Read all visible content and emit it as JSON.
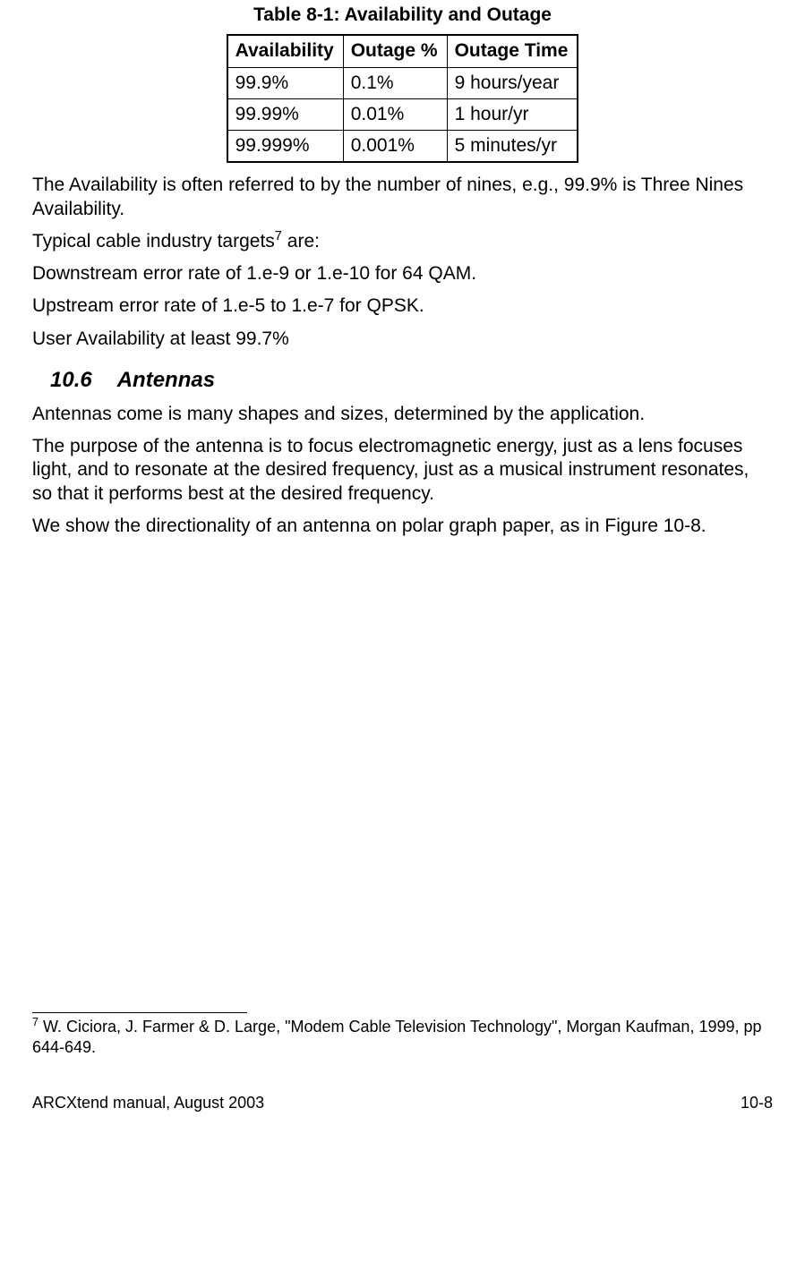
{
  "table": {
    "caption": "Table 8-1: Availability and Outage",
    "columns": [
      "Availability",
      "Outage %",
      "Outage Time"
    ],
    "rows": [
      [
        "99.9%",
        "0.1%",
        "9 hours/year"
      ],
      [
        "99.99%",
        "0.01%",
        "1 hour/yr"
      ],
      [
        "99.999%",
        "0.001%",
        "5 minutes/yr"
      ]
    ]
  },
  "paragraphs": {
    "p1": "The Availability is often referred to by the number of nines, e.g., 99.9% is Three Nines Availability.",
    "p2a": "Typical cable industry targets",
    "p2sup": "7",
    "p2b": " are:",
    "p3": "Downstream error rate of 1.e-9 or 1.e-10 for 64 QAM.",
    "p4": "Upstream error rate of 1.e-5 to 1.e-7 for QPSK.",
    "p5": "User Availability at least 99.7%"
  },
  "section": {
    "number": "10.6",
    "title": "Antennas"
  },
  "antennas": {
    "p1": "Antennas come is many shapes and sizes, determined by the application.",
    "p2": "The purpose of the antenna is to focus electromagnetic energy, just as a lens focuses light, and to resonate at the desired frequency, just as a musical instrument resonates, so that it performs best at the desired frequency.",
    "p3": "We show the directionality of an antenna on polar graph paper, as in Figure 10-8."
  },
  "footnote": {
    "num": "7",
    "text": " W. Ciciora, J. Farmer & D. Large, \"Modem Cable Television Technology\", Morgan Kaufman, 1999, pp 644-649."
  },
  "footer": {
    "left": "ARCXtend manual, August 2003",
    "right": "10-8"
  }
}
